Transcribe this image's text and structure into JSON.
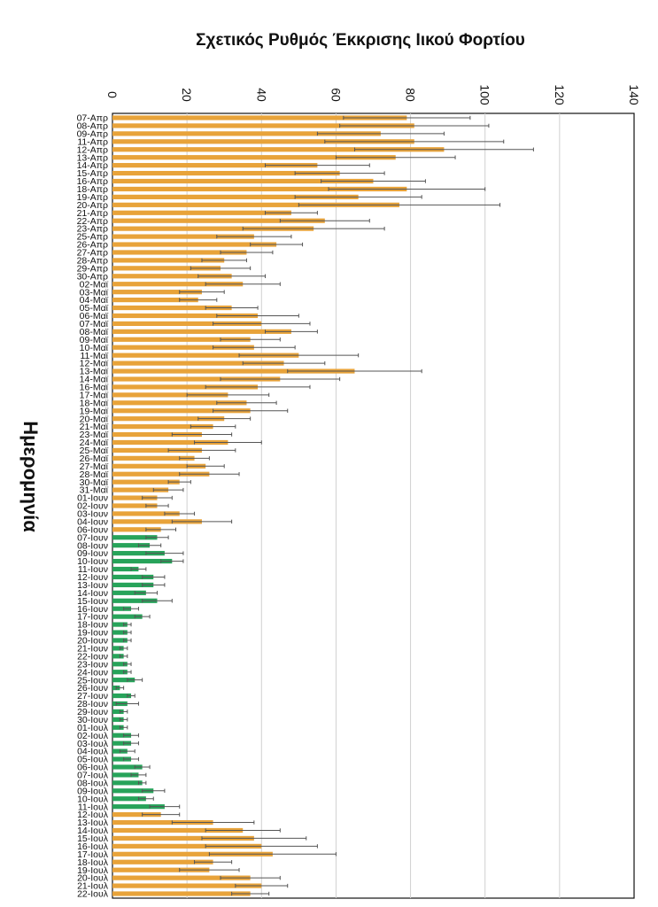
{
  "chart_data": {
    "type": "bar",
    "orientation": "horizontal",
    "title": "Σχετικός Ρυθμός Έκκρισης Ιικού Φορτίου",
    "xlabel": "Ημερομηνία",
    "ylabel": "",
    "vlim": [
      0,
      140
    ],
    "ticks": [
      0,
      20,
      40,
      60,
      80,
      100,
      120,
      140
    ],
    "grid": true,
    "colors": {
      "orange": "#E8A33A",
      "green": "#27A35A",
      "error": "#555555",
      "grid": "#d0d0d0"
    },
    "categories": [
      "07-Απρ",
      "08-Απρ",
      "09-Απρ",
      "11-Απρ",
      "12-Απρ",
      "13-Απρ",
      "14-Απρ",
      "15-Απρ",
      "16-Απρ",
      "18-Απρ",
      "19-Απρ",
      "20-Απρ",
      "21-Απρ",
      "22-Απρ",
      "23-Απρ",
      "25-Απρ",
      "26-Απρ",
      "27-Απρ",
      "28-Απρ",
      "29-Απρ",
      "30-Απρ",
      "02-Μαϊ",
      "03-Μαϊ",
      "04-Μαϊ",
      "05-Μαϊ",
      "06-Μαϊ",
      "07-Μαϊ",
      "08-Μαϊ",
      "09-Μαϊ",
      "10-Μαϊ",
      "11-Μαϊ",
      "12-Μαϊ",
      "13-Μαϊ",
      "14-Μαϊ",
      "16-Μαϊ",
      "17-Μαϊ",
      "18-Μαϊ",
      "19-Μαϊ",
      "20-Μαϊ",
      "21-Μαϊ",
      "23-Μαϊ",
      "24-Μαϊ",
      "25-Μαϊ",
      "26-Μαϊ",
      "27-Μαϊ",
      "28-Μαϊ",
      "30-Μαϊ",
      "31-Μαϊ",
      "01-Ιουν",
      "02-Ιουν",
      "03-Ιουν",
      "04-Ιουν",
      "06-Ιουν",
      "07-Ιουν",
      "08-Ιουν",
      "09-Ιουν",
      "10-Ιουν",
      "11-Ιουν",
      "12-Ιουν",
      "13-Ιουν",
      "14-Ιουν",
      "15-Ιουν",
      "16-Ιουν",
      "17-Ιουν",
      "18-Ιουν",
      "19-Ιουν",
      "20-Ιουν",
      "21-Ιουν",
      "22-Ιουν",
      "23-Ιουν",
      "24-Ιουν",
      "25-Ιουν",
      "26-Ιουν",
      "27-Ιουν",
      "28-Ιουν",
      "29-Ιουν",
      "30-Ιουν",
      "01-Ιουλ",
      "02-Ιουλ",
      "03-Ιουλ",
      "04-Ιουλ",
      "05-Ιουλ",
      "06-Ιουλ",
      "07-Ιουλ",
      "08-Ιουλ",
      "09-Ιουλ",
      "10-Ιουλ",
      "11-Ιουλ",
      "12-Ιουλ",
      "13-Ιουλ",
      "14-Ιουλ",
      "15-Ιουλ",
      "16-Ιουλ",
      "17-Ιουλ",
      "18-Ιουλ",
      "19-Ιουλ",
      "20-Ιουλ",
      "21-Ιουλ",
      "22-Ιουλ"
    ],
    "values": [
      79,
      81,
      72,
      81,
      89,
      76,
      55,
      61,
      70,
      79,
      66,
      77,
      48,
      57,
      54,
      38,
      44,
      36,
      30,
      29,
      32,
      35,
      24,
      23,
      32,
      39,
      40,
      48,
      37,
      38,
      50,
      46,
      65,
      45,
      39,
      31,
      36,
      37,
      30,
      27,
      24,
      31,
      24,
      22,
      25,
      26,
      18,
      15,
      12,
      12,
      18,
      24,
      13,
      12,
      10,
      14,
      16,
      7,
      11,
      11,
      9,
      12,
      5,
      8,
      4,
      4,
      4,
      3,
      3,
      4,
      4,
      6,
      2,
      5,
      4,
      3,
      3,
      3,
      5,
      5,
      4,
      5,
      8,
      7,
      8,
      11,
      9,
      14,
      13,
      27,
      35,
      38,
      40,
      43,
      27,
      26,
      37,
      40,
      37
    ],
    "errors": [
      17,
      20,
      17,
      24,
      24,
      16,
      14,
      12,
      14,
      21,
      17,
      27,
      7,
      12,
      19,
      10,
      7,
      7,
      6,
      8,
      9,
      10,
      6,
      5,
      7,
      11,
      13,
      7,
      8,
      11,
      16,
      11,
      18,
      16,
      14,
      11,
      8,
      10,
      7,
      6,
      8,
      9,
      9,
      4,
      5,
      8,
      3,
      4,
      4,
      3,
      4,
      8,
      4,
      3,
      3,
      5,
      3,
      2,
      3,
      3,
      3,
      4,
      2,
      2,
      1,
      1,
      1,
      1,
      1,
      1,
      1,
      2,
      1,
      1,
      3,
      1,
      1,
      1,
      2,
      2,
      2,
      2,
      2,
      2,
      1,
      3,
      2,
      4,
      5,
      11,
      10,
      14,
      15,
      17,
      5,
      8,
      8,
      7,
      5
    ],
    "green_range": [
      "07-Ιουν",
      "11-Ιουλ"
    ]
  }
}
